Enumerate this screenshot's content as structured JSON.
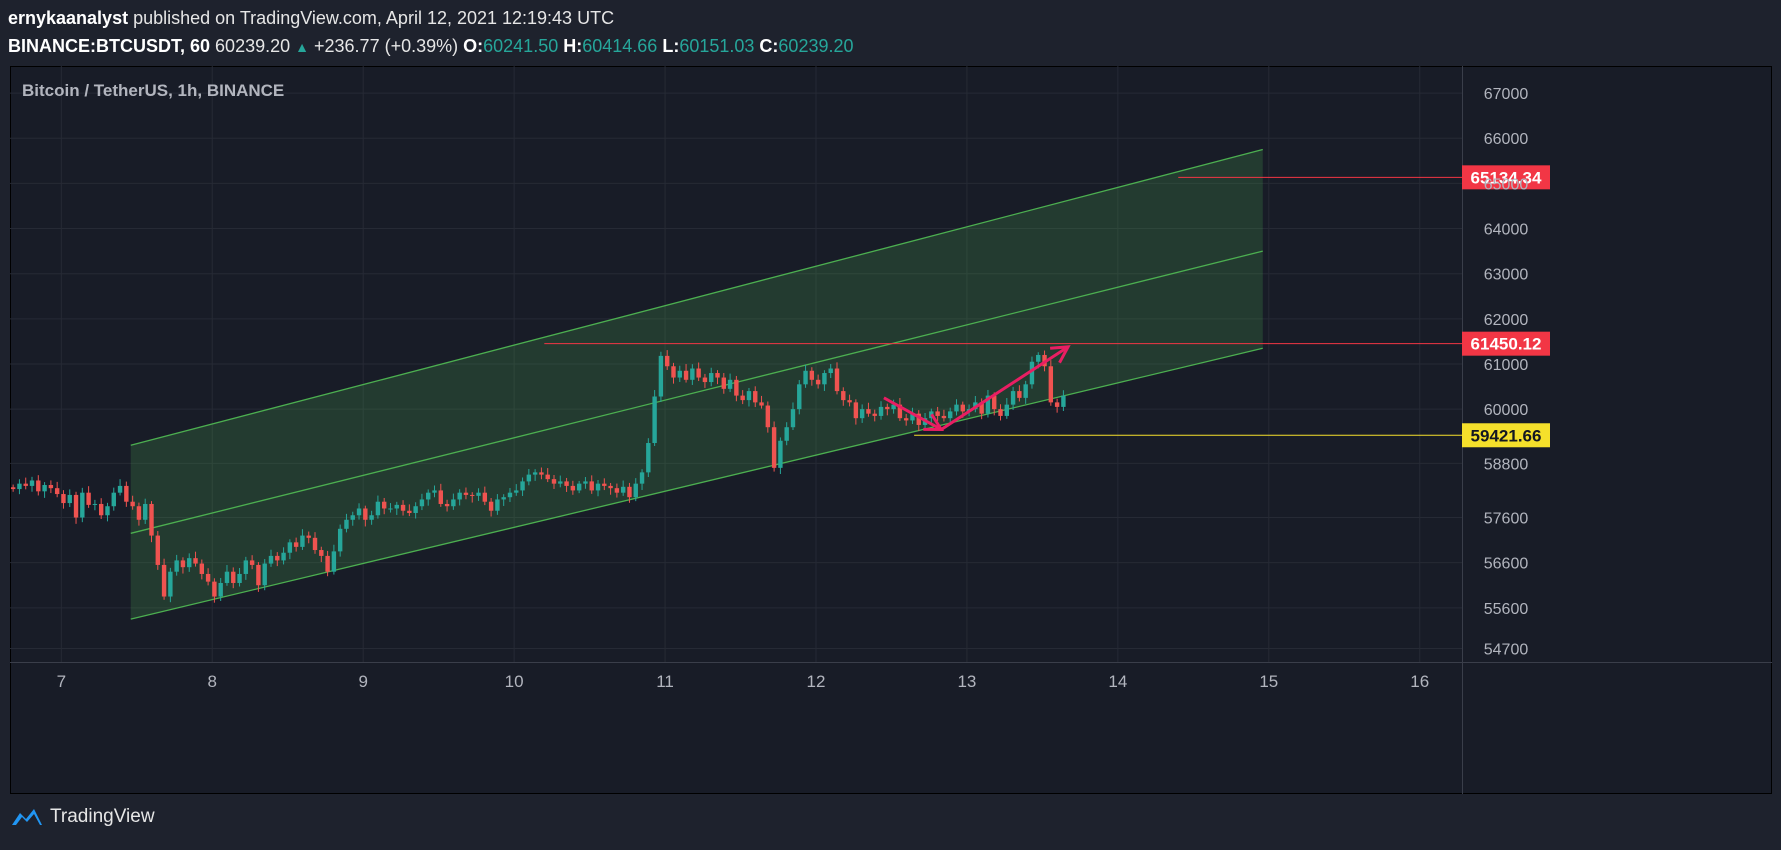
{
  "header": {
    "author": "ernykaanalyst",
    "published": "published on TradingView.com, April 12, 2021 12:19:43 UTC",
    "symbol": "BINANCE:BTCUSDT, 60",
    "last": "60239.20",
    "change": "+236.77 (+0.39%)",
    "o_label": "O:",
    "o": "60241.50",
    "h_label": "H:",
    "h": "60414.66",
    "l_label": "L:",
    "l": "60151.03",
    "c_label": "C:",
    "c": "60239.20"
  },
  "legend": "Bitcoin / TetherUS, 1h, BINANCE",
  "footer": {
    "brand": "TradingView"
  },
  "colors": {
    "up": "#26a69a",
    "down": "#ef5350",
    "channel": "#4caf50",
    "arrow": "#e91e63",
    "red_label": "#f23645",
    "yellow_label": "#f5e02b"
  },
  "chart_data": {
    "type": "candlestick",
    "title": "Bitcoin / TetherUS, 1h, BINANCE",
    "x_ticks": [
      "7",
      "8",
      "9",
      "10",
      "11",
      "12",
      "13",
      "14",
      "15",
      "16"
    ],
    "y_ticks": [
      67000,
      66000,
      65000,
      64000,
      63000,
      62000,
      61000,
      60000,
      58800,
      57600,
      56600,
      55600,
      54700
    ],
    "y_range": [
      54400,
      67600
    ],
    "x_range_days": [
      6.66,
      16.28
    ],
    "closes": [
      58230,
      58350,
      58300,
      58420,
      58180,
      58320,
      58250,
      58120,
      57920,
      58100,
      57600,
      58150,
      57880,
      57900,
      57650,
      57850,
      58150,
      58300,
      57950,
      57850,
      57550,
      57900,
      57200,
      56550,
      55850,
      56400,
      56650,
      56500,
      56700,
      56580,
      56350,
      56180,
      55850,
      56150,
      56400,
      56150,
      56350,
      56650,
      56550,
      56100,
      56580,
      56750,
      56650,
      56820,
      57050,
      56950,
      57200,
      57150,
      56880,
      56750,
      56400,
      56850,
      57350,
      57550,
      57650,
      57800,
      57550,
      57650,
      57950,
      57800,
      57800,
      57880,
      57750,
      57700,
      57850,
      58000,
      58150,
      58200,
      57900,
      57850,
      58000,
      58150,
      58100,
      58080,
      58150,
      57950,
      57750,
      58000,
      58050,
      58150,
      58200,
      58400,
      58550,
      58600,
      58550,
      58450,
      58350,
      58400,
      58300,
      58200,
      58350,
      58400,
      58200,
      58350,
      58300,
      58250,
      58150,
      58280,
      58050,
      58350,
      58600,
      59250,
      60280,
      61180,
      60950,
      60700,
      60850,
      60650,
      60900,
      60700,
      60600,
      60800,
      60700,
      60450,
      60650,
      60300,
      60200,
      60400,
      60150,
      60080,
      59600,
      58700,
      59300,
      59600,
      60000,
      60550,
      60850,
      60650,
      60550,
      60800,
      60900,
      60400,
      60200,
      60150,
      59800,
      60000,
      59900,
      59850,
      60050,
      60000,
      60100,
      59800,
      59750,
      59900,
      59650,
      59800,
      59950,
      59850,
      59800,
      59950,
      60100,
      59950,
      60000,
      60150,
      59900,
      60300,
      60000,
      59850,
      60100,
      60400,
      60250,
      60550,
      61050,
      61200,
      60950,
      60150,
      60050,
      60300
    ],
    "channel": {
      "start_day": 7.46,
      "end_day": 14.96,
      "upper": [
        59200,
        65750
      ],
      "middle": [
        57250,
        63500
      ],
      "lower": [
        55350,
        61350
      ]
    },
    "levels": [
      {
        "label": "65134.34",
        "value": 65134.34,
        "color": "red"
      },
      {
        "label": "61450.12",
        "value": 61450.12,
        "color": "red"
      },
      {
        "label": "59421.66",
        "value": 59421.66,
        "color": "yellow"
      }
    ],
    "projection": [
      [
        12.45,
        60250
      ],
      [
        12.83,
        59550
      ],
      [
        13.67,
        61380
      ]
    ]
  }
}
